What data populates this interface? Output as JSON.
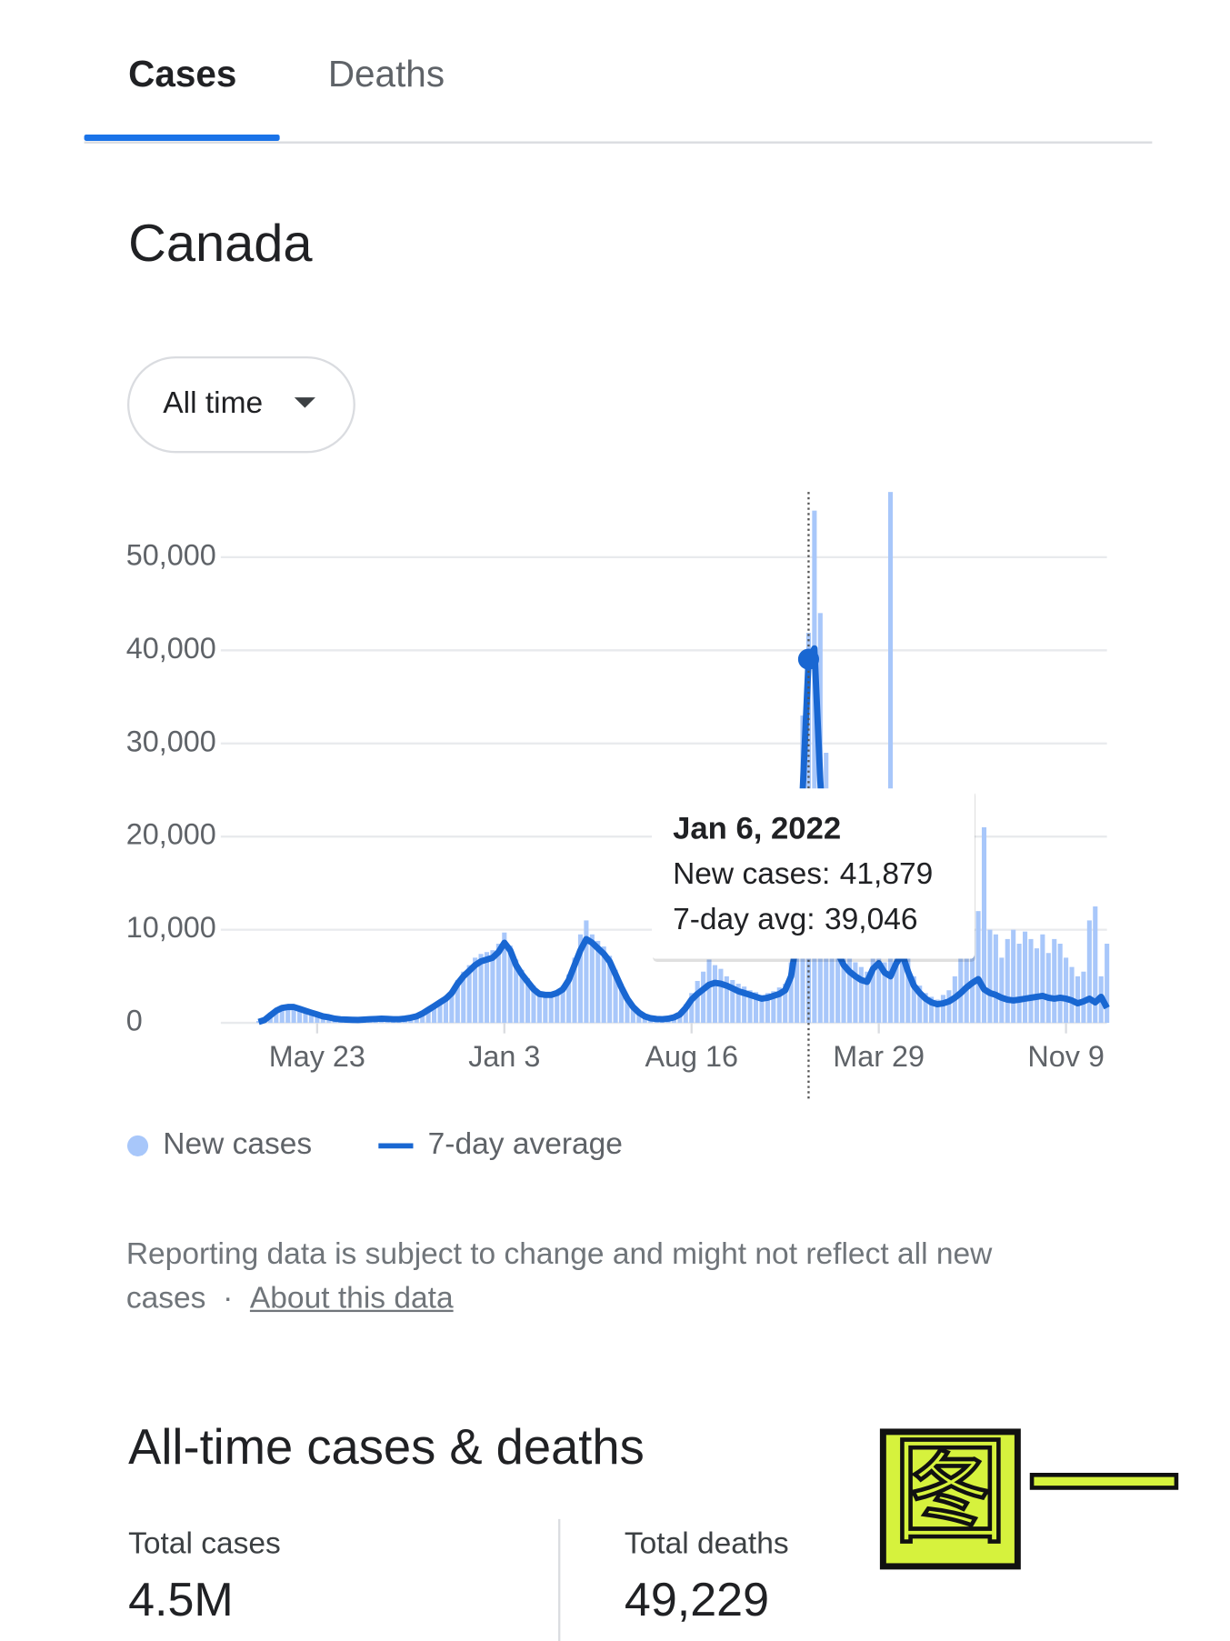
{
  "tabs": [
    "Cases",
    "Deaths"
  ],
  "region": "Canada",
  "range_selector": "All time",
  "chart_data": {
    "type": "bar-line",
    "categories": [
      null,
      null,
      null,
      null,
      null,
      null,
      null,
      null,
      null,
      null,
      "May 23",
      null,
      null,
      null,
      null,
      null,
      null,
      null,
      null,
      null,
      null,
      null,
      null,
      null,
      null,
      null,
      null,
      null,
      null,
      null,
      null,
      null,
      null,
      null,
      null,
      null,
      null,
      null,
      null,
      null,
      null,
      null,
      "Jan 3",
      null,
      null,
      null,
      null,
      null,
      null,
      null,
      null,
      null,
      null,
      null,
      null,
      null,
      null,
      null,
      null,
      null,
      null,
      null,
      null,
      null,
      null,
      null,
      null,
      null,
      null,
      null,
      null,
      null,
      null,
      null,
      "Aug 16",
      null,
      null,
      null,
      null,
      null,
      null,
      null,
      null,
      null,
      null,
      null,
      null,
      null,
      null,
      null,
      null,
      null,
      null,
      null,
      null,
      null,
      null,
      null,
      null,
      null,
      null,
      null,
      null,
      null,
      null,
      null,
      "Mar 29",
      null,
      null,
      null,
      null,
      null,
      null,
      null,
      null,
      null,
      null,
      null,
      null,
      null,
      null,
      null,
      null,
      null,
      null,
      null,
      null,
      null,
      null,
      null,
      null,
      null,
      null,
      null,
      null,
      null,
      null,
      null,
      "Nov 9",
      null,
      null,
      null,
      null,
      null,
      null,
      null
    ],
    "series": [
      {
        "name": "New cases",
        "color": "#a8c7fa",
        "values": [
          200,
          500,
          1100,
          1500,
          1800,
          1900,
          1800,
          1600,
          1400,
          1200,
          1000,
          800,
          700,
          500,
          400,
          400,
          350,
          350,
          400,
          450,
          450,
          500,
          450,
          450,
          450,
          500,
          600,
          800,
          1100,
          1500,
          2000,
          2400,
          2900,
          3500,
          4600,
          5500,
          6200,
          7000,
          7400,
          7600,
          7800,
          8500,
          9700,
          8300,
          6800,
          5700,
          4800,
          4000,
          3400,
          3300,
          3300,
          3500,
          4000,
          5200,
          7000,
          9500,
          11000,
          9500,
          8800,
          8200,
          7200,
          5700,
          4200,
          2900,
          1900,
          1200,
          800,
          550,
          480,
          450,
          500,
          700,
          1100,
          2000,
          3200,
          4500,
          5500,
          6800,
          6200,
          5800,
          5000,
          4600,
          4200,
          3900,
          3500,
          3300,
          3000,
          3200,
          3400,
          3800,
          4200,
          6500,
          13000,
          33000,
          41879,
          55000,
          44000,
          29000,
          20000,
          12000,
          8500,
          7000,
          6500,
          6000,
          5500,
          7000,
          8000,
          6500,
          57000,
          8000,
          9000,
          7000,
          5000,
          4000,
          3200,
          2800,
          2500,
          3000,
          3500,
          5000,
          8000,
          9500,
          10000,
          12000,
          21000,
          10000,
          9500,
          7000,
          9000,
          10000,
          8500,
          9800,
          9000,
          8000,
          9500,
          7500,
          9000,
          8500,
          7000,
          6000,
          5000,
          5500,
          11000,
          12500,
          5000,
          8500
        ]
      },
      {
        "name": "7-day average",
        "color": "#1967d2",
        "values": [
          100,
          300,
          800,
          1300,
          1600,
          1700,
          1700,
          1500,
          1300,
          1100,
          900,
          700,
          600,
          450,
          380,
          350,
          330,
          320,
          350,
          400,
          420,
          450,
          430,
          400,
          400,
          450,
          550,
          700,
          1000,
          1400,
          1800,
          2200,
          2600,
          3200,
          4200,
          5000,
          5600,
          6200,
          6600,
          6800,
          7000,
          7600,
          8600,
          7800,
          6200,
          5200,
          4400,
          3600,
          3100,
          3000,
          3000,
          3200,
          3600,
          4600,
          6200,
          7800,
          9000,
          8600,
          8000,
          7400,
          6600,
          5200,
          3800,
          2600,
          1700,
          1100,
          700,
          500,
          420,
          400,
          450,
          600,
          900,
          1600,
          2500,
          3100,
          3600,
          4100,
          4300,
          4200,
          4000,
          3700,
          3400,
          3200,
          3000,
          2800,
          2600,
          2700,
          2900,
          3100,
          3500,
          5000,
          9000,
          25000,
          39046,
          40200,
          26000,
          15000,
          10000,
          7500,
          6200,
          5500,
          5000,
          4600,
          4400,
          5800,
          6400,
          5400,
          5000,
          6400,
          7400,
          5500,
          4000,
          3200,
          2600,
          2200,
          2000,
          2100,
          2300,
          2700,
          3200,
          3800,
          4300,
          4700,
          3600,
          3200,
          3000,
          2700,
          2500,
          2400,
          2500,
          2600,
          2700,
          2800,
          2900,
          2700,
          2600,
          2700,
          2600,
          2400,
          2100,
          2300,
          2600,
          2200,
          2800,
          1600
        ]
      }
    ],
    "ylim": [
      0,
      57000
    ],
    "yticks": [
      0,
      {
        "value": 10000,
        "label": "10,000"
      },
      {
        "value": 20000,
        "label": "20,000"
      },
      {
        "value": 30000,
        "label": "30,000"
      },
      {
        "value": 40000,
        "label": "40,000"
      },
      {
        "value": 50000,
        "label": "50,000"
      }
    ],
    "grid": true,
    "tooltip": {
      "title": "Jan 6, 2022",
      "rows": [
        {
          "label": "New cases:",
          "value": 41879,
          "value_label": "41,879"
        },
        {
          "label": "7-day avg:",
          "value": 39046,
          "value_label": "39,046"
        }
      ]
    }
  },
  "note": {
    "text": "Reporting data is subject to change and might not reflect all new cases",
    "separator": "·",
    "link": "About this data"
  },
  "totals_title": "All-time cases & deaths",
  "totals": [
    {
      "label": "Total cases",
      "value": 4500000,
      "value_label": "4.5M"
    },
    {
      "label": "Total deaths",
      "value": 49229,
      "value_label": "49,229"
    }
  ],
  "sticker": [
    "图",
    "一"
  ]
}
